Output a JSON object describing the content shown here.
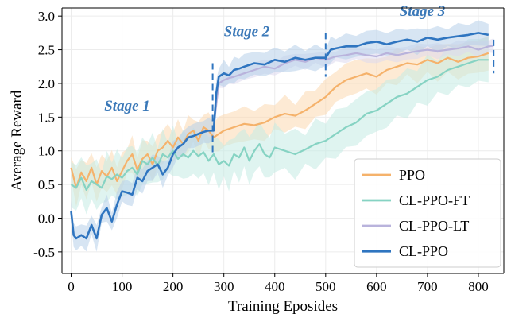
{
  "chart_data": {
    "type": "line",
    "xlabel": "Training Eposides",
    "ylabel": "Average Reward",
    "xlim": [
      -18,
      850
    ],
    "ylim": [
      -0.82,
      3.12
    ],
    "xticks": [
      0,
      100,
      200,
      300,
      400,
      500,
      600,
      700,
      800
    ],
    "yticks": [
      -0.5,
      0.0,
      0.5,
      1.0,
      1.5,
      2.0,
      2.5,
      3.0
    ],
    "ytick_labels": [
      "-0.5",
      "0.0",
      "0.5",
      "1.0",
      "1.5",
      "2.0",
      "2.5",
      "3.0"
    ],
    "grid": true,
    "legend_position": "lower-right",
    "series": [
      {
        "name": "PPO",
        "color": "#f5b26b",
        "band_color": "#fcd9b0",
        "line_width": 2.2,
        "x": [
          0,
          10,
          20,
          30,
          40,
          50,
          60,
          70,
          80,
          90,
          100,
          110,
          120,
          130,
          140,
          150,
          160,
          170,
          180,
          190,
          200,
          210,
          220,
          230,
          240,
          250,
          260,
          270,
          280,
          290,
          300,
          320,
          340,
          360,
          380,
          400,
          420,
          440,
          460,
          480,
          500,
          520,
          540,
          560,
          580,
          600,
          620,
          640,
          660,
          680,
          700,
          720,
          740,
          760,
          780,
          800,
          820
        ],
        "y": [
          0.75,
          0.45,
          0.68,
          0.55,
          0.75,
          0.5,
          0.7,
          0.62,
          0.75,
          0.55,
          0.7,
          0.85,
          0.95,
          0.72,
          0.88,
          0.95,
          0.8,
          1.0,
          1.05,
          1.15,
          1.05,
          1.2,
          1.1,
          1.25,
          1.3,
          1.15,
          1.35,
          1.3,
          1.2,
          1.25,
          1.3,
          1.35,
          1.4,
          1.38,
          1.42,
          1.5,
          1.55,
          1.52,
          1.6,
          1.7,
          1.8,
          1.95,
          2.05,
          2.1,
          2.15,
          2.1,
          2.2,
          2.25,
          2.3,
          2.28,
          2.35,
          2.3,
          2.38,
          2.32,
          2.38,
          2.4,
          2.45
        ],
        "spread": 0.28
      },
      {
        "name": "CL-PPO-FT",
        "color": "#86d3c3",
        "band_color": "#c4ebe3",
        "line_width": 2.2,
        "x": [
          0,
          10,
          20,
          30,
          40,
          50,
          60,
          70,
          80,
          90,
          100,
          110,
          120,
          130,
          140,
          150,
          160,
          170,
          180,
          190,
          200,
          210,
          220,
          230,
          240,
          250,
          260,
          270,
          280,
          290,
          300,
          310,
          320,
          330,
          340,
          350,
          360,
          370,
          380,
          390,
          400,
          420,
          440,
          460,
          480,
          500,
          520,
          540,
          560,
          580,
          600,
          620,
          640,
          660,
          680,
          700,
          720,
          740,
          760,
          780,
          800,
          820
        ],
        "y": [
          0.5,
          0.45,
          0.6,
          0.42,
          0.55,
          0.5,
          0.45,
          0.62,
          0.58,
          0.65,
          0.6,
          0.7,
          0.75,
          0.65,
          0.85,
          0.8,
          0.9,
          0.78,
          0.95,
          0.9,
          1.0,
          0.88,
          0.95,
          0.9,
          1.0,
          0.92,
          0.98,
          0.85,
          0.95,
          0.8,
          0.85,
          0.78,
          0.95,
          0.9,
          1.05,
          0.85,
          1.0,
          1.1,
          0.95,
          0.9,
          1.05,
          1.0,
          0.95,
          1.02,
          1.1,
          1.15,
          1.25,
          1.35,
          1.42,
          1.55,
          1.6,
          1.7,
          1.8,
          1.85,
          1.95,
          2.05,
          2.1,
          2.2,
          2.25,
          2.3,
          2.35,
          2.35
        ],
        "spread": 0.38
      },
      {
        "name": "CL-PPO-LT",
        "color": "#b9b3dc",
        "band_color": "#dcd8ef",
        "line_width": 2.2,
        "x": [
          280,
          290,
          300,
          310,
          320,
          340,
          360,
          380,
          400,
          420,
          440,
          460,
          480,
          500,
          520,
          540,
          560,
          580,
          600,
          620,
          640,
          660,
          680,
          700,
          720,
          740,
          760,
          780,
          800,
          820,
          830
        ],
        "y": [
          1.35,
          2.0,
          2.05,
          2.08,
          2.1,
          2.15,
          2.2,
          2.25,
          2.22,
          2.3,
          2.35,
          2.32,
          2.38,
          2.35,
          2.4,
          2.42,
          2.45,
          2.42,
          2.4,
          2.45,
          2.42,
          2.45,
          2.48,
          2.5,
          2.48,
          2.5,
          2.52,
          2.55,
          2.5,
          2.55,
          2.56
        ],
        "spread": 0.12
      },
      {
        "name": "CL-PPO",
        "color": "#2f75c0",
        "band_color": "#b6cfea",
        "line_width": 2.6,
        "x": [
          0,
          5,
          10,
          20,
          30,
          40,
          50,
          60,
          70,
          80,
          90,
          100,
          110,
          120,
          130,
          140,
          150,
          160,
          170,
          180,
          190,
          200,
          210,
          220,
          230,
          240,
          250,
          260,
          270,
          280,
          285,
          290,
          300,
          310,
          320,
          330,
          340,
          360,
          380,
          400,
          420,
          440,
          460,
          480,
          500,
          510,
          520,
          540,
          560,
          580,
          600,
          620,
          640,
          660,
          680,
          700,
          720,
          740,
          760,
          780,
          800,
          820
        ],
        "y": [
          0.1,
          -0.25,
          -0.3,
          -0.25,
          -0.3,
          -0.1,
          -0.3,
          0.05,
          0.15,
          -0.05,
          0.2,
          0.4,
          0.38,
          0.35,
          0.6,
          0.55,
          0.7,
          0.75,
          0.8,
          0.65,
          0.75,
          0.95,
          1.05,
          1.1,
          1.2,
          1.22,
          1.25,
          1.28,
          1.3,
          1.3,
          1.85,
          2.1,
          2.15,
          2.12,
          2.2,
          2.22,
          2.25,
          2.3,
          2.28,
          2.35,
          2.32,
          2.38,
          2.35,
          2.38,
          2.38,
          2.5,
          2.52,
          2.55,
          2.55,
          2.6,
          2.62,
          2.58,
          2.62,
          2.65,
          2.62,
          2.68,
          2.65,
          2.68,
          2.7,
          2.72,
          2.75,
          2.72
        ],
        "spread": 0.2
      }
    ],
    "stages": [
      {
        "label": "Stage 1",
        "x": 110,
        "y": 1.6
      },
      {
        "label": "Stage 2",
        "x": 345,
        "y": 2.7
      },
      {
        "label": "Stage 3",
        "x": 690,
        "y": 3.0
      }
    ],
    "stage_dividers": [
      {
        "x": 278,
        "y0": 0.95,
        "y1": 2.3
      },
      {
        "x": 500,
        "y0": 2.1,
        "y1": 2.75
      },
      {
        "x": 830,
        "y0": 2.15,
        "y1": 2.65
      }
    ],
    "divider_color": "#2f75c0"
  }
}
